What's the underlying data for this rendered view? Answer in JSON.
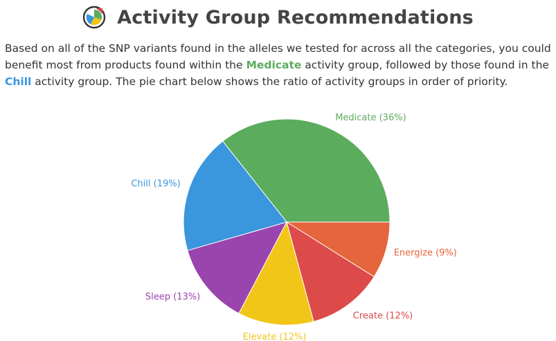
{
  "header": {
    "title": "Activity Group Recommendations",
    "logo_icon": "pie-chart-badge-icon"
  },
  "intro": {
    "part1": "Based on all of the SNP variants found in the alleles we tested for across all the categories, you could benefit most from products found within the ",
    "primary_group": "Medicate",
    "part2": " activity group, followed by those found in the ",
    "secondary_group": "Chill",
    "part3": " activity group. The pie chart below shows the ratio of activity groups in order of priority."
  },
  "colors": {
    "text": "#333333",
    "title": "#444444",
    "primary_highlight": "#5cac5e",
    "secondary_highlight": "#3a96dd"
  },
  "chart_data": {
    "type": "pie",
    "title": "",
    "slices": [
      {
        "label": "Medicate (36%)",
        "name": "Medicate",
        "value": 36,
        "color": "#5cac5e"
      },
      {
        "label": "Energize (9%)",
        "name": "Energize",
        "value": 9,
        "color": "#e5663c"
      },
      {
        "label": "Create (12%)",
        "name": "Create",
        "value": 12,
        "color": "#dc4a4a"
      },
      {
        "label": "Elevate (12%)",
        "name": "Elevate",
        "value": 12,
        "color": "#f1c619"
      },
      {
        "label": "Sleep (13%)",
        "name": "Sleep",
        "value": 13,
        "color": "#9a44ad"
      },
      {
        "label": "Chill (19%)",
        "name": "Chill",
        "value": 19,
        "color": "#3a96dd"
      }
    ]
  }
}
